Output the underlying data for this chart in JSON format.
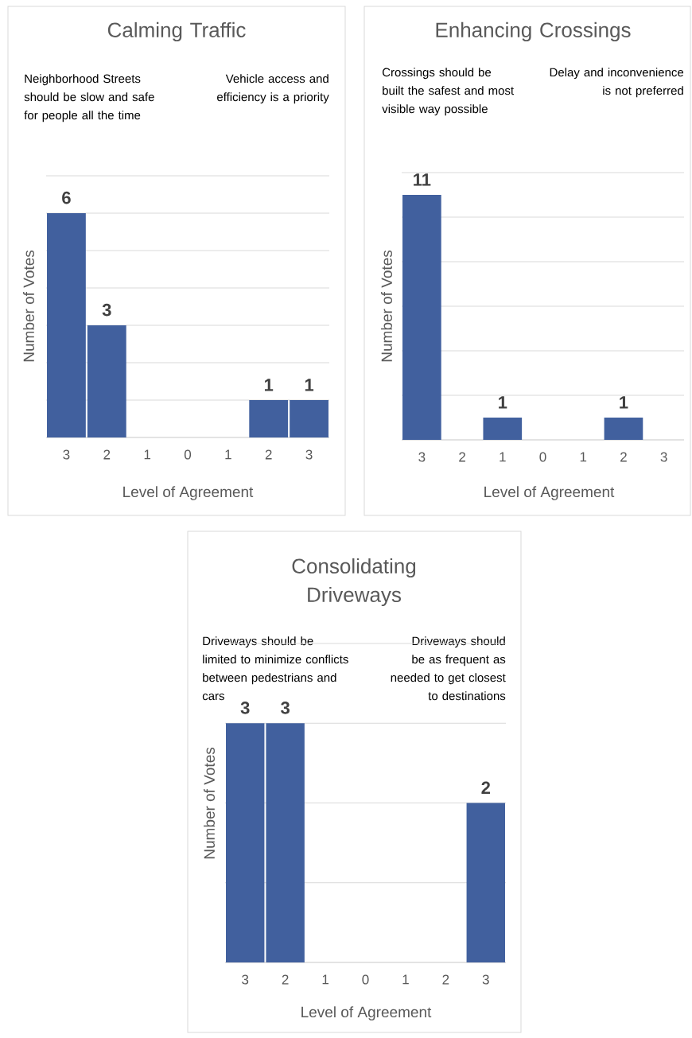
{
  "chart_data": [
    {
      "type": "bar",
      "title": "Calming Traffic",
      "xlabel": "Level of Agreement",
      "ylabel": "Number of Votes",
      "annotations": [
        "Neighborhood Streets should be slow and safe for people all the time",
        "Vehicle access and efficiency is a priority"
      ],
      "categories": [
        "3",
        "2",
        "1",
        "0",
        "1",
        "2",
        "3"
      ],
      "values": [
        6,
        3,
        0,
        0,
        0,
        1,
        1
      ],
      "value_labels": [
        "6",
        "3",
        null,
        null,
        null,
        "1",
        "1"
      ],
      "color": "#41609e",
      "ylim": [
        0,
        7
      ],
      "yticks": [
        {
          "value": 0,
          "label": null
        },
        {
          "value": 1,
          "label": null
        },
        {
          "value": 2,
          "label": null
        },
        {
          "value": 3,
          "label": null
        },
        {
          "value": 4,
          "label": null
        },
        {
          "value": 5,
          "label": null
        },
        {
          "value": 6,
          "label": null
        },
        {
          "value": 7,
          "label": null
        }
      ],
      "grid": "y",
      "tick_labels": "x"
    },
    {
      "type": "bar",
      "title": "Enhancing Crossings",
      "xlabel": "Level of Agreement",
      "ylabel": "Number of Votes",
      "annotations": [
        "Crossings should be built the safest and most visible way possible",
        "Delay and inconvenience is not preferred"
      ],
      "categories": [
        "3",
        "2",
        "1",
        "0",
        "1",
        "2",
        "3"
      ],
      "values": [
        11,
        0,
        1,
        0,
        0,
        1,
        0
      ],
      "value_labels": [
        "11",
        null,
        "1",
        null,
        null,
        "1",
        null
      ],
      "color": "#41609e",
      "ylim": [
        0,
        12
      ],
      "yticks": [
        {
          "value": 0,
          "label": null
        },
        {
          "value": 2,
          "label": null
        },
        {
          "value": 4,
          "label": null
        },
        {
          "value": 6,
          "label": null
        },
        {
          "value": 8,
          "label": null
        },
        {
          "value": 10,
          "label": null
        },
        {
          "value": 12,
          "label": null
        }
      ],
      "grid": "y",
      "tick_labels": "x"
    },
    {
      "type": "bar",
      "title": "Consolidating Driveways",
      "xlabel": "Level of Agreement",
      "ylabel": "Number of Votes",
      "annotations": [
        "Driveways should be limited to minimize conflicts between pedestrians and cars",
        "Driveways should be as frequent as needed to get closest to destinations"
      ],
      "categories": [
        "3",
        "2",
        "1",
        "0",
        "1",
        "2",
        "3"
      ],
      "values": [
        3,
        3,
        0,
        0,
        0,
        0,
        2
      ],
      "value_labels": [
        "3",
        "3",
        null,
        null,
        null,
        null,
        "2"
      ],
      "color": "#41609e",
      "ylim": [
        0,
        4
      ],
      "yticks": [
        {
          "value": 0,
          "label": null
        },
        {
          "value": 1,
          "label": null
        },
        {
          "value": 2,
          "label": null
        },
        {
          "value": 3,
          "label": null
        },
        {
          "value": 4,
          "label": null
        }
      ],
      "grid": "y",
      "tick_labels": "x"
    }
  ]
}
